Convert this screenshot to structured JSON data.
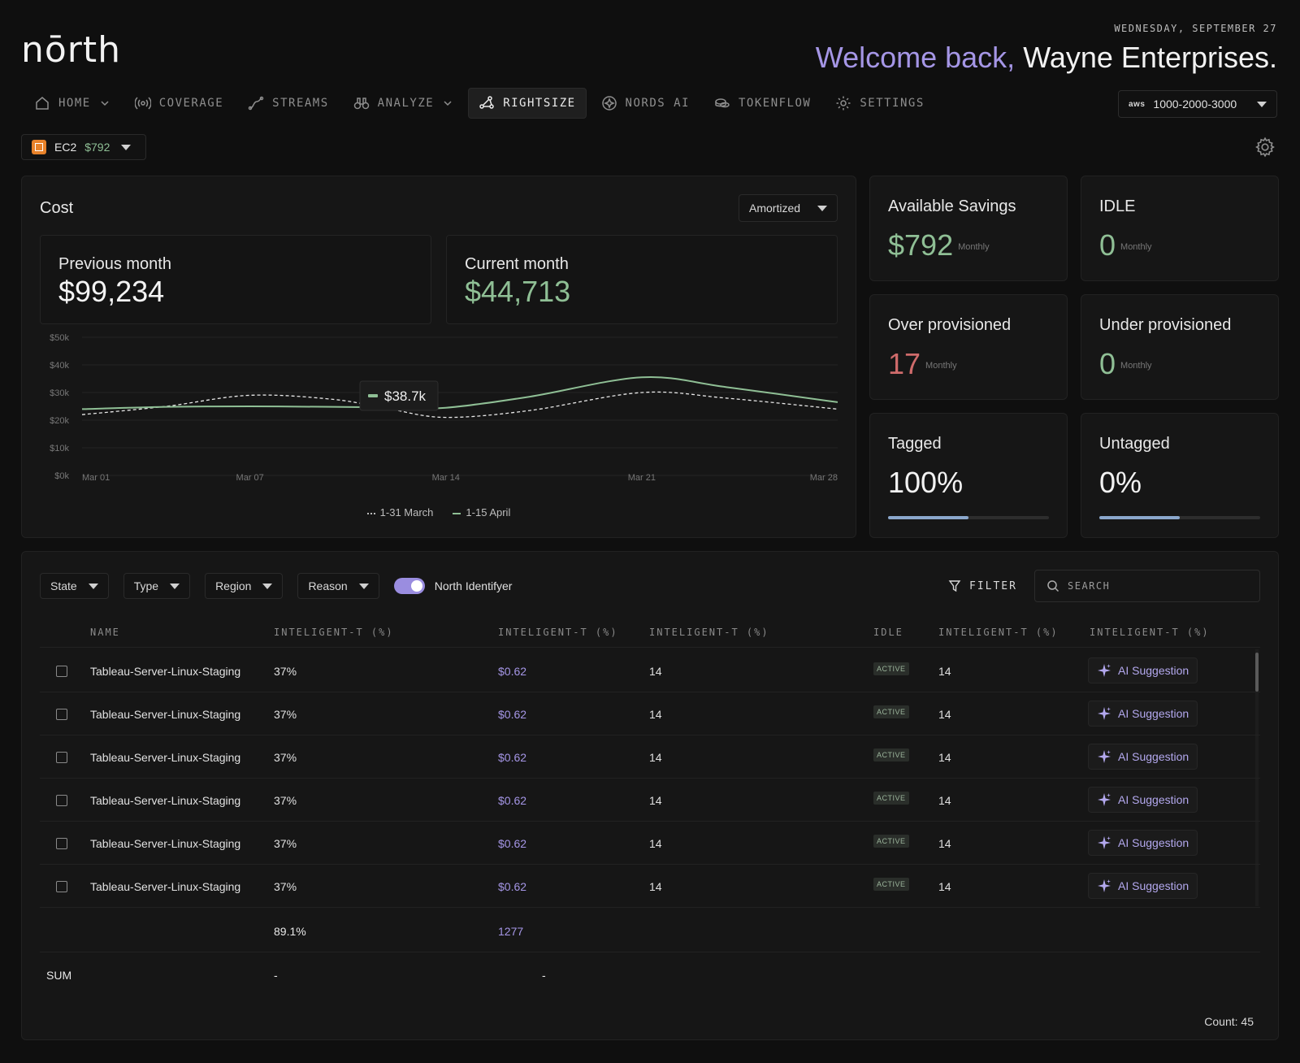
{
  "header": {
    "logo": "nōrth",
    "date": "WEDNESDAY, SEPTEMBER 27",
    "welcome_prefix": "Welcome back,",
    "welcome_name": "Wayne Enterprises."
  },
  "nav": {
    "items": [
      {
        "label": "HOME",
        "icon": "home-icon"
      },
      {
        "label": "COVERAGE",
        "icon": "broadcast-icon"
      },
      {
        "label": "STREAMS",
        "icon": "streams-icon"
      },
      {
        "label": "ANALYZE",
        "icon": "binoculars-icon"
      },
      {
        "label": "RIGHTSIZE",
        "icon": "rightsize-icon",
        "active": true
      },
      {
        "label": "NORDS AI",
        "icon": "ai-icon"
      },
      {
        "label": "TOKENFLOW",
        "icon": "coins-icon"
      },
      {
        "label": "SETTINGS",
        "icon": "gear-icon"
      }
    ],
    "account": {
      "provider": "aws",
      "value": "1000-2000-3000"
    }
  },
  "service_select": {
    "service": "EC2",
    "price": "$792"
  },
  "cost": {
    "title": "Cost",
    "mode": "Amortized",
    "previous_label": "Previous month",
    "previous_value": "$99,234",
    "current_label": "Current month",
    "current_value": "$44,713",
    "tooltip": "$38.7k"
  },
  "chart_data": {
    "type": "line",
    "y_ticks": [
      "$50k",
      "$40k",
      "$30k",
      "$20k",
      "$10k",
      "$0k"
    ],
    "x_ticks": [
      "Mar 01",
      "Mar 07",
      "Mar 14",
      "Mar 21",
      "Mar 28"
    ],
    "ylim": [
      0,
      50000
    ],
    "x": [
      1,
      4,
      7,
      10,
      12,
      14,
      17,
      21,
      24,
      28
    ],
    "series": [
      {
        "name": "1-31 March",
        "style": "dashed",
        "color": "#e8e8e8",
        "values": [
          22000,
          25000,
          29000,
          27500,
          24000,
          21000,
          23500,
          30000,
          28000,
          24000
        ]
      },
      {
        "name": "1-15 April",
        "style": "solid",
        "color": "#8fbf95",
        "values": [
          24000,
          24800,
          25000,
          24800,
          24600,
          24500,
          28500,
          35500,
          32000,
          26500
        ]
      }
    ]
  },
  "metrics": {
    "savings": {
      "title": "Available Savings",
      "value": "$792",
      "unit": "Monthly"
    },
    "idle": {
      "title": "IDLE",
      "value": "0",
      "unit": "Monthly"
    },
    "over": {
      "title": "Over provisioned",
      "value": "17",
      "unit": "Monthly"
    },
    "under": {
      "title": "Under provisioned",
      "value": "0",
      "unit": "Monthly"
    },
    "tagged": {
      "title": "Tagged",
      "value": "100%",
      "progress": 0.5
    },
    "untagged": {
      "title": "Untagged",
      "value": "0%",
      "progress": 0.5
    }
  },
  "table": {
    "filters": [
      "State",
      "Type",
      "Region",
      "Reason"
    ],
    "toggle_label": "North Identifyer",
    "filter_label": "FILTER",
    "search_placeholder": "SEARCH",
    "columns": [
      "NAME",
      "INTELIGENT-T (%)",
      "INTELIGENT-T (%)",
      "INTELIGENT-T (%)",
      "IDLE",
      "INTELIGENT-T (%)",
      "INTELIGENT-T (%)"
    ],
    "rows": [
      {
        "name": "Tableau-Server-Linux-Staging",
        "pct": "37%",
        "cost": "$0.62",
        "n1": "14",
        "status": "ACTIVE",
        "n2": "14",
        "action": "AI Suggestion"
      },
      {
        "name": "Tableau-Server-Linux-Staging",
        "pct": "37%",
        "cost": "$0.62",
        "n1": "14",
        "status": "ACTIVE",
        "n2": "14",
        "action": "AI Suggestion"
      },
      {
        "name": "Tableau-Server-Linux-Staging",
        "pct": "37%",
        "cost": "$0.62",
        "n1": "14",
        "status": "ACTIVE",
        "n2": "14",
        "action": "AI Suggestion"
      },
      {
        "name": "Tableau-Server-Linux-Staging",
        "pct": "37%",
        "cost": "$0.62",
        "n1": "14",
        "status": "ACTIVE",
        "n2": "14",
        "action": "AI Suggestion"
      },
      {
        "name": "Tableau-Server-Linux-Staging",
        "pct": "37%",
        "cost": "$0.62",
        "n1": "14",
        "status": "ACTIVE",
        "n2": "14",
        "action": "AI Suggestion"
      },
      {
        "name": "Tableau-Server-Linux-Staging",
        "pct": "37%",
        "cost": "$0.62",
        "n1": "14",
        "status": "ACTIVE",
        "n2": "14",
        "action": "AI Suggestion"
      }
    ],
    "totals": {
      "pct": "89.1%",
      "cost": "1277"
    },
    "sum": {
      "label": "SUM",
      "a": "-",
      "b": "-"
    },
    "count": "Count: 45"
  }
}
